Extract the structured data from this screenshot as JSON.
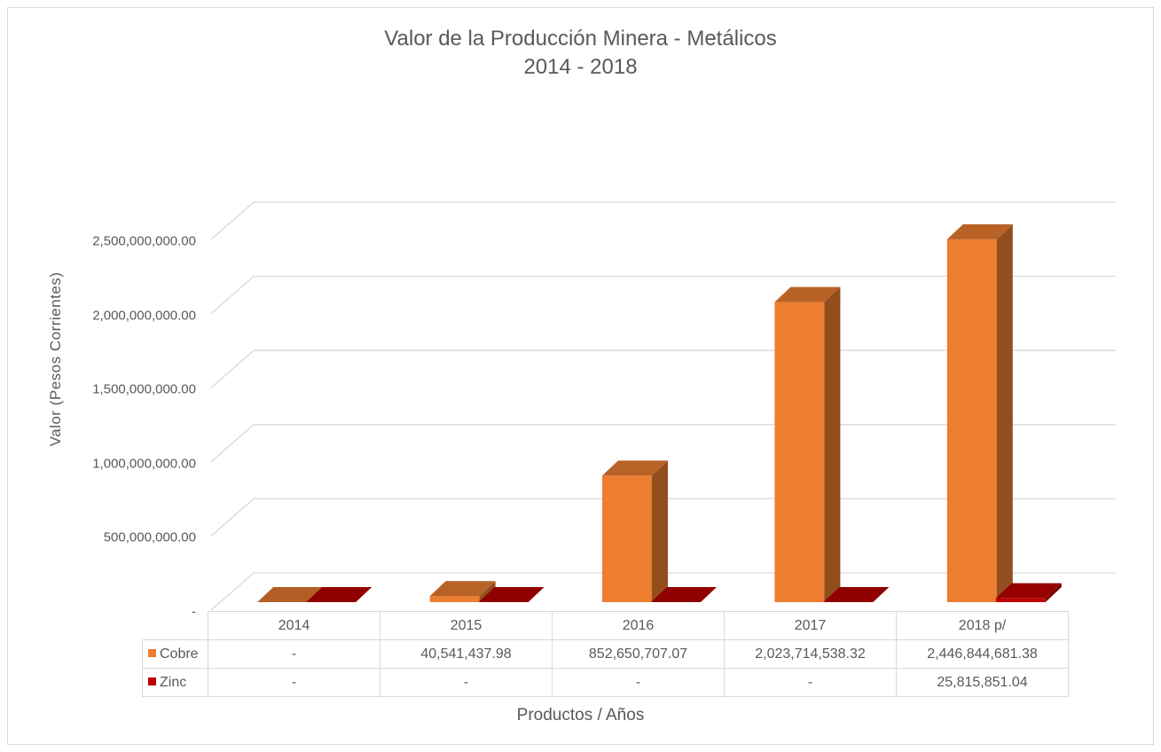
{
  "chart_data": {
    "type": "bar",
    "title": "Valor de la Producción Minera - Metálicos",
    "subtitle": "2014 - 2018",
    "xlabel": "Productos / Años",
    "ylabel": "Valor (Pesos Corrientes)",
    "categories": [
      "2014",
      "2015",
      "2016",
      "2017",
      "2018 p/"
    ],
    "series": [
      {
        "name": "Cobre",
        "color": "#ED7D31",
        "values": [
          0,
          40541437.98,
          852650707.07,
          2023714538.32,
          2446844681.38
        ],
        "labels": [
          "-",
          "40,541,437.98",
          "852,650,707.07",
          "2,023,714,538.32",
          "2,446,844,681.38"
        ]
      },
      {
        "name": "Zinc",
        "color": "#C00000",
        "values": [
          0,
          0,
          0,
          0,
          25815851.04
        ],
        "labels": [
          "-",
          "-",
          "-",
          "-",
          "25,815,851.04"
        ]
      }
    ],
    "ylim": [
      0,
      2500000000
    ],
    "yticks": [
      0,
      500000000,
      1000000000,
      1500000000,
      2000000000,
      2500000000
    ],
    "ytick_labels": [
      "-",
      "500,000,000.00",
      "1,000,000,000.00",
      "1,500,000,000.00",
      "2,000,000,000.00",
      "2,500,000,000.00"
    ],
    "grid": true,
    "legend": "data-table",
    "style": "3d-column"
  }
}
